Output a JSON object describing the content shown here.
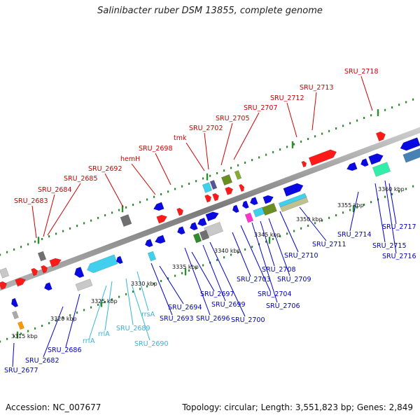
{
  "title": "Salinibacter ruber DSM 13855, complete genome",
  "footer": {
    "accession": "Accession: NC_007677",
    "topology": "Topology: circular; Length: 3,551,823 bp; Genes: 2,849"
  },
  "colors": {
    "top_label": "#cc0000",
    "bottom_label": "#0000cc",
    "rna_label": "#33b5d8",
    "backbone": "#9a9a9a",
    "tick": "#2e8b2e"
  },
  "kbp_ticks": [
    "3315 kbp",
    "3320 kbp",
    "3325 kbp",
    "3330 kbp",
    "3335 kbp",
    "3340 kbp",
    "3345 kbp",
    "3350 kbp",
    "3355 kbp",
    "3360 kbp"
  ],
  "top_labels": [
    "SRU_2683",
    "SRU_2684",
    "SRU_2685",
    "SRU_2692",
    "hemH",
    "SRU_2698",
    "tmk",
    "SRU_2702",
    "SRU_2705",
    "SRU_2707",
    "SRU_2712",
    "SRU_2713",
    "SRU_2718"
  ],
  "bottom_labels": [
    "SRU_2677",
    "SRU_2682",
    "SRU_2686",
    "SRU_2693",
    "SRU_2694",
    "SRU_2696",
    "SRU_2697",
    "SRU_2699",
    "SRU_2700",
    "SRU_2703",
    "SRU_2704",
    "SRU_2706",
    "SRU_2708",
    "SRU_2709",
    "SRU_2710",
    "SRU_2711",
    "SRU_2714",
    "SRU_2715",
    "SRU_2716",
    "SRU_2717"
  ],
  "rna_labels": [
    "rrfA",
    "rrlA",
    "SRU_2689",
    "rrsA",
    "SRU_2690"
  ]
}
